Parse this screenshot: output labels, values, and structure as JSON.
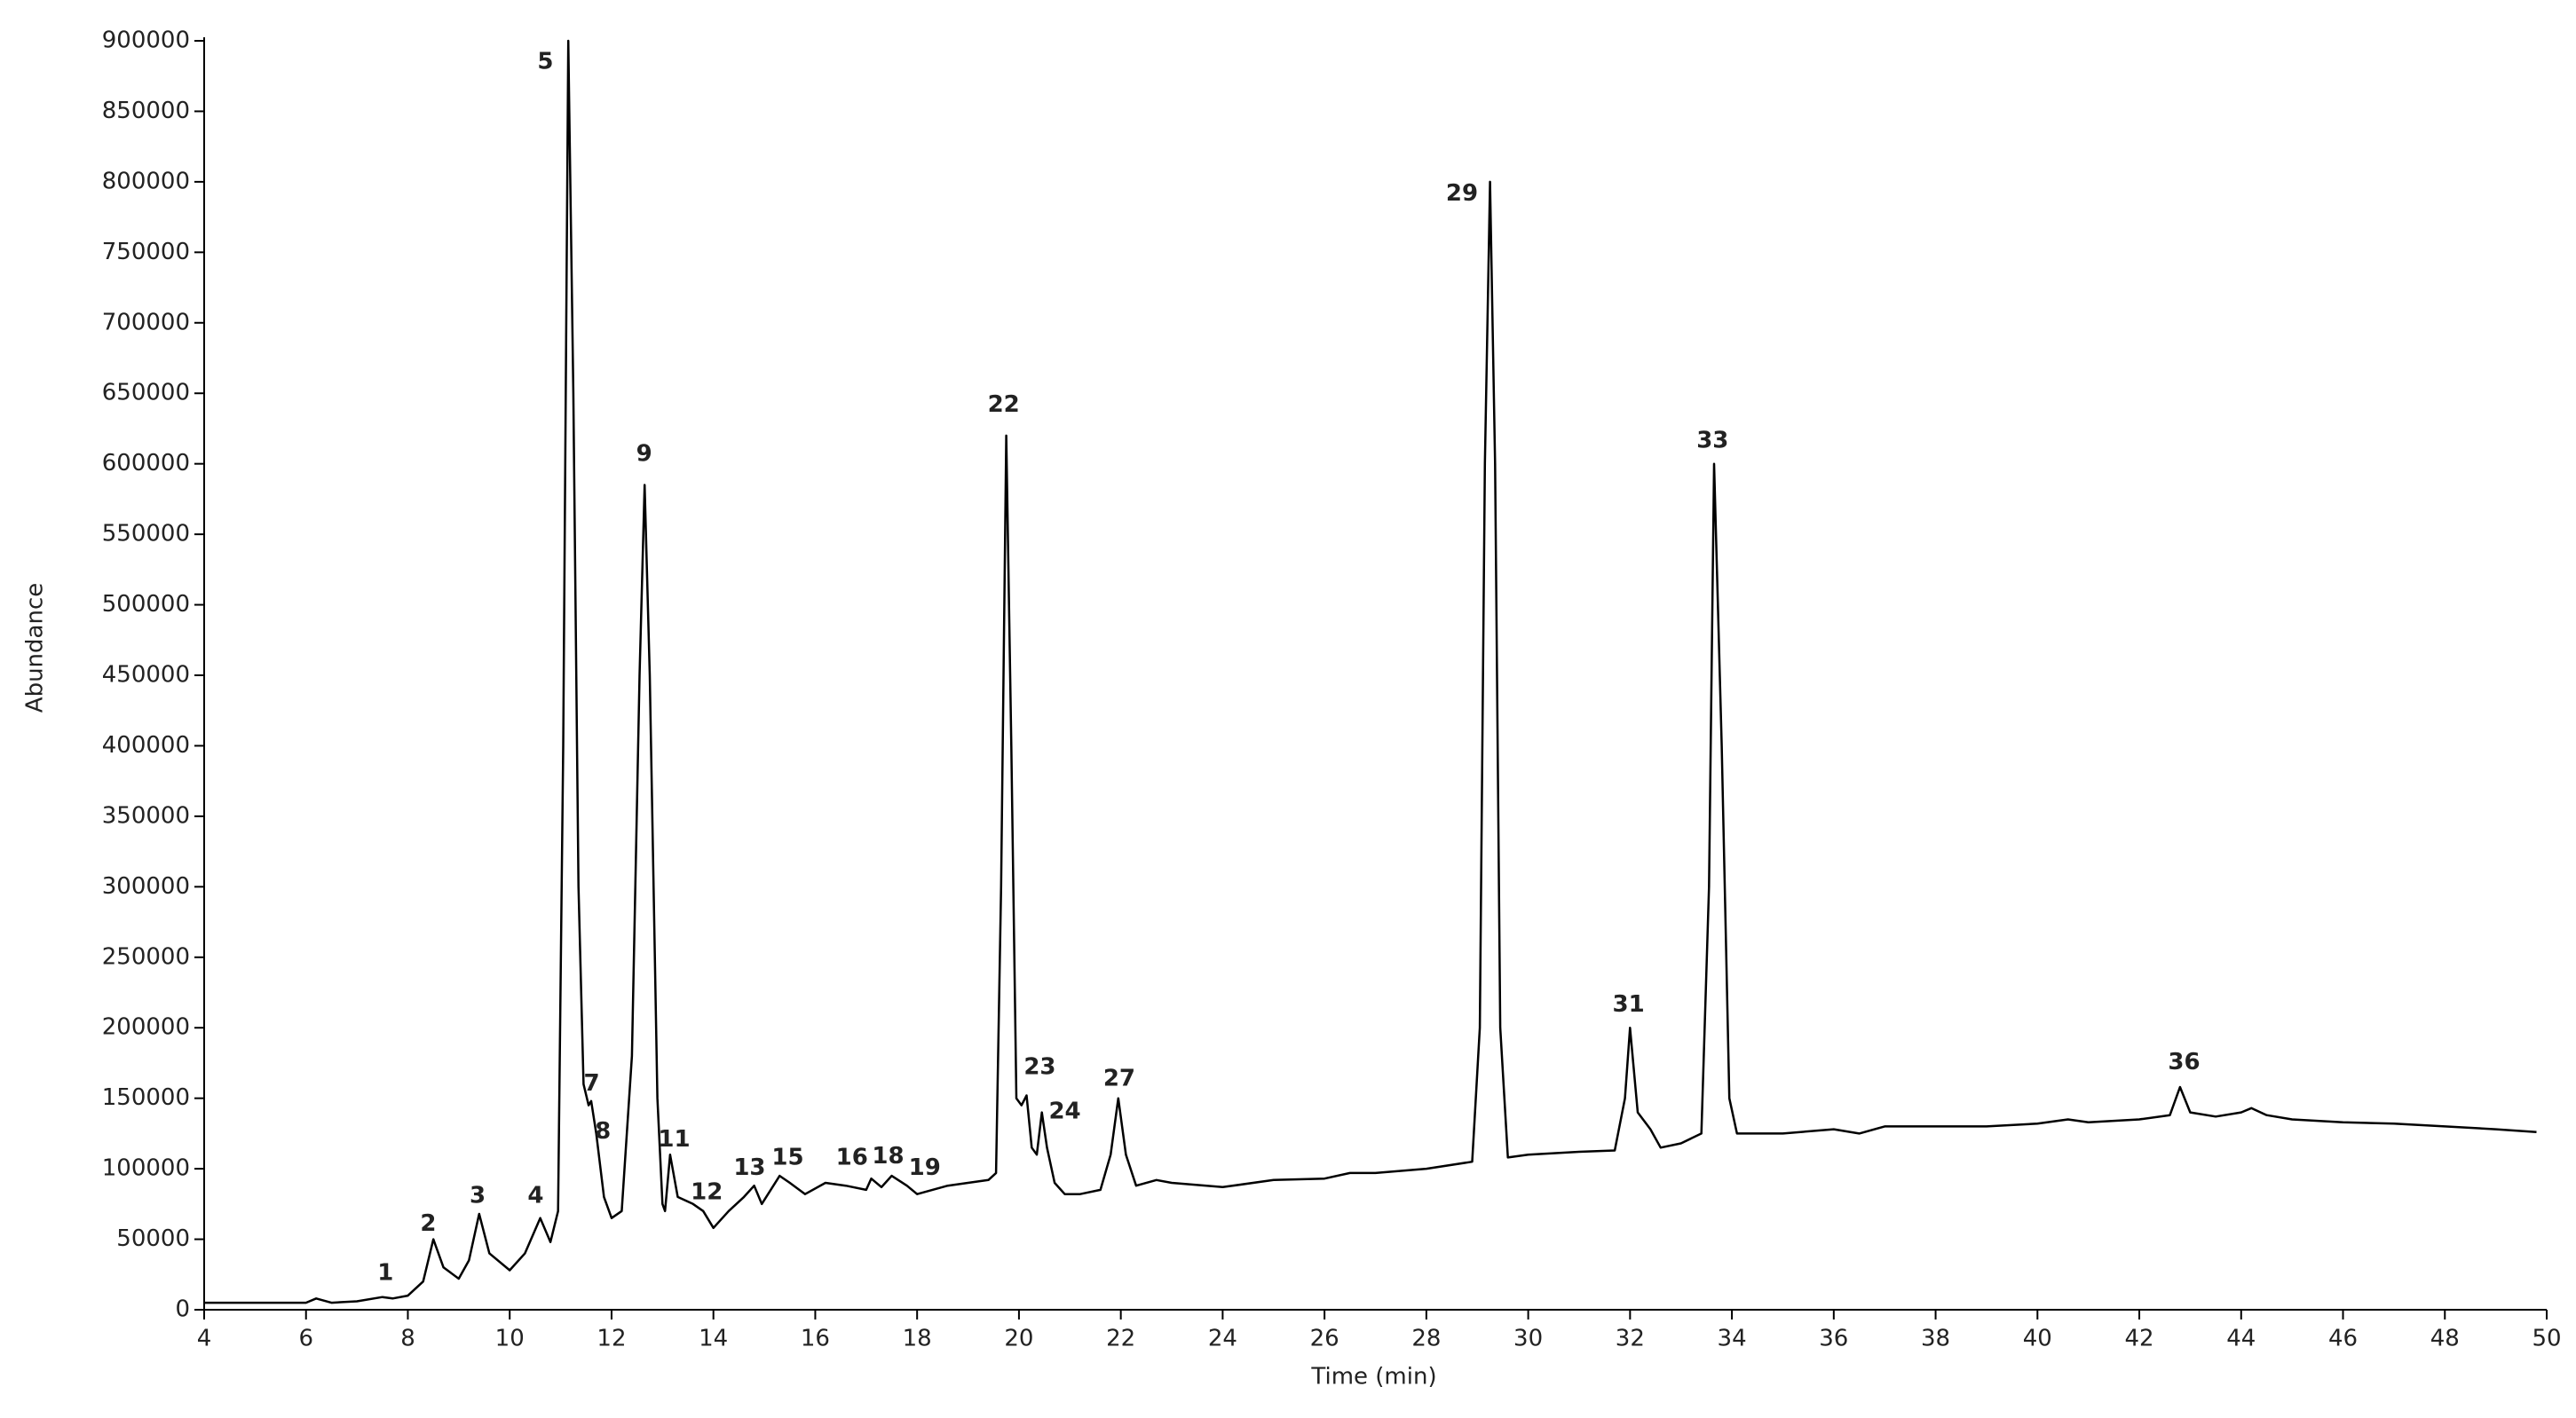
{
  "chart_data": {
    "type": "line",
    "x_label": "Time (min)",
    "y_label": "Abundance",
    "color": "#000000",
    "x": [
      4,
      5,
      6,
      6.2,
      6.5,
      7,
      7.5,
      7.7,
      8,
      8.3,
      8.5,
      8.7,
      9,
      9.2,
      9.4,
      9.6,
      10,
      10.3,
      10.6,
      10.8,
      10.95,
      11.05,
      11.15,
      11.25,
      11.35,
      11.45,
      11.55,
      11.6,
      11.7,
      11.85,
      12,
      12.2,
      12.4,
      12.55,
      12.65,
      12.75,
      12.9,
      13.0,
      13.05,
      13.15,
      13.3,
      13.6,
      13.8,
      14,
      14.3,
      14.6,
      14.8,
      14.95,
      15.3,
      15.5,
      15.8,
      16.2,
      16.6,
      17,
      17.1,
      17.3,
      17.5,
      17.8,
      18,
      18.3,
      18.6,
      19,
      19.4,
      19.55,
      19.65,
      19.75,
      19.85,
      19.95,
      20.05,
      20.15,
      20.25,
      20.35,
      20.45,
      20.55,
      20.7,
      20.9,
      21.2,
      21.6,
      21.8,
      21.95,
      22.1,
      22.3,
      22.7,
      23,
      24,
      25,
      26,
      26.5,
      27,
      28,
      28.9,
      29.05,
      29.15,
      29.25,
      29.35,
      29.45,
      29.6,
      30,
      31,
      31.7,
      31.9,
      32.0,
      32.15,
      32.4,
      32.6,
      33,
      33.4,
      33.55,
      33.65,
      33.8,
      33.95,
      34.1,
      35,
      36,
      36.5,
      37,
      38,
      39,
      40,
      40.6,
      41,
      42,
      42.6,
      42.8,
      43,
      43.5,
      44,
      44.2,
      44.5,
      45,
      46,
      47,
      48,
      49,
      49.8
    ],
    "values": [
      5000,
      5000,
      5000,
      8000,
      5000,
      6000,
      9000,
      8000,
      10000,
      20000,
      50000,
      30000,
      22000,
      35000,
      68000,
      40000,
      28000,
      40000,
      65000,
      48000,
      70000,
      400000,
      900000,
      650000,
      300000,
      160000,
      145000,
      148000,
      125000,
      80000,
      65000,
      70000,
      180000,
      450000,
      585000,
      450000,
      150000,
      75000,
      70000,
      110000,
      80000,
      75000,
      70000,
      58000,
      70000,
      80000,
      88000,
      75000,
      95000,
      90000,
      82000,
      90000,
      88000,
      85000,
      93000,
      87000,
      95000,
      88000,
      82000,
      85000,
      88000,
      90000,
      92000,
      97000,
      300000,
      620000,
      400000,
      150000,
      145000,
      152000,
      115000,
      110000,
      140000,
      115000,
      90000,
      82000,
      82000,
      85000,
      110000,
      150000,
      110000,
      88000,
      92000,
      90000,
      87000,
      92000,
      93000,
      97000,
      97000,
      100000,
      105000,
      200000,
      600000,
      800000,
      600000,
      200000,
      108000,
      110000,
      112000,
      113000,
      150000,
      200000,
      140000,
      128000,
      115000,
      118000,
      125000,
      300000,
      600000,
      400000,
      150000,
      125000,
      125000,
      128000,
      125000,
      130000,
      130000,
      130000,
      132000,
      135000,
      133000,
      135000,
      138000,
      158000,
      140000,
      137000,
      140000,
      143000,
      138000,
      135000,
      133000,
      132000,
      130000,
      128000,
      126000
    ],
    "annotations": [
      {
        "text": "1",
        "x": 7.56,
        "y": 25700
      },
      {
        "text": "2",
        "x": 8.4,
        "y": 60800
      },
      {
        "text": "3",
        "x": 9.37,
        "y": 80600
      },
      {
        "text": "4",
        "x": 10.51,
        "y": 80600
      },
      {
        "text": "5",
        "x": 10.7,
        "y": 884800
      },
      {
        "text": "7",
        "x": 11.61,
        "y": 160100
      },
      {
        "text": "8",
        "x": 11.83,
        "y": 126200
      },
      {
        "text": "9",
        "x": 12.64,
        "y": 606600
      },
      {
        "text": "11",
        "x": 13.23,
        "y": 120400
      },
      {
        "text": "12",
        "x": 13.87,
        "y": 83000
      },
      {
        "text": "13",
        "x": 14.71,
        "y": 100500
      },
      {
        "text": "15",
        "x": 15.46,
        "y": 107500
      },
      {
        "text": "16",
        "x": 16.72,
        "y": 107500
      },
      {
        "text": "18",
        "x": 17.43,
        "y": 108700
      },
      {
        "text": "19",
        "x": 18.15,
        "y": 100500
      },
      {
        "text": "22",
        "x": 19.7,
        "y": 641700
      },
      {
        "text": "23",
        "x": 20.41,
        "y": 171800
      },
      {
        "text": "24",
        "x": 20.9,
        "y": 140300
      },
      {
        "text": "27",
        "x": 21.97,
        "y": 163600
      },
      {
        "text": "29",
        "x": 28.7,
        "y": 791300
      },
      {
        "text": "31",
        "x": 31.97,
        "y": 216200
      },
      {
        "text": "33",
        "x": 33.62,
        "y": 616000
      },
      {
        "text": "36",
        "x": 42.88,
        "y": 175300
      }
    ],
    "xlim": [
      4,
      50
    ],
    "xticks": [
      4,
      6,
      8,
      10,
      12,
      14,
      16,
      18,
      20,
      22,
      24,
      26,
      28,
      30,
      32,
      34,
      36,
      38,
      40,
      42,
      44,
      46,
      48,
      50
    ],
    "ylim": [
      0,
      900000
    ],
    "yticks": [
      0,
      50000,
      100000,
      150000,
      200000,
      250000,
      300000,
      350000,
      400000,
      450000,
      500000,
      550000,
      600000,
      650000,
      700000,
      750000,
      800000,
      850000,
      900000
    ]
  }
}
